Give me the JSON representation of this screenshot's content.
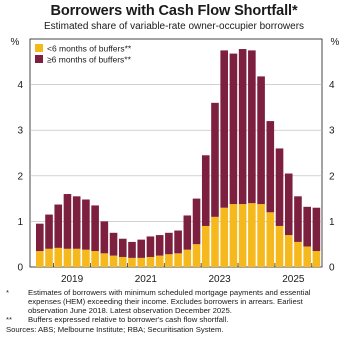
{
  "chart_data": {
    "type": "bar",
    "title": "Borrowers with Cash Flow Shortfall*",
    "subtitle": "Estimated share of variable-rate owner-occupier borrowers",
    "ylabel_left": "%",
    "ylabel_right": "%",
    "ylim": [
      0,
      5
    ],
    "y_ticks": [
      "0",
      "1",
      "2",
      "3",
      "4"
    ],
    "x_tick_labels": [
      {
        "label": "2019",
        "index": 3
      },
      {
        "label": "2021",
        "index": 11
      },
      {
        "label": "2023",
        "index": 19
      },
      {
        "label": "2025",
        "index": 27
      }
    ],
    "categories": [
      "Jun 2018",
      "Sep 2018",
      "Dec 2018",
      "Mar 2019",
      "Jun 2019",
      "Sep 2019",
      "Dec 2019",
      "Mar 2020",
      "Jun 2020",
      "Sep 2020",
      "Dec 2020",
      "Mar 2021",
      "Jun 2021",
      "Sep 2021",
      "Dec 2021",
      "Mar 2022",
      "Jun 2022",
      "Sep 2022",
      "Dec 2022",
      "Mar 2023",
      "Jun 2023",
      "Sep 2023",
      "Dec 2023",
      "Mar 2024",
      "Jun 2024",
      "Sep 2024",
      "Dec 2024",
      "Mar 2025",
      "Jun 2025",
      "Sep 2025",
      "Dec 2025"
    ],
    "series": [
      {
        "name": "<6 months of buffers**",
        "color": "#f5b91e",
        "values": [
          0.35,
          0.4,
          0.42,
          0.4,
          0.4,
          0.38,
          0.35,
          0.3,
          0.25,
          0.22,
          0.2,
          0.2,
          0.22,
          0.25,
          0.28,
          0.3,
          0.38,
          0.5,
          0.9,
          1.1,
          1.3,
          1.38,
          1.38,
          1.4,
          1.38,
          1.2,
          0.9,
          0.7,
          0.55,
          0.45,
          0.35
        ]
      },
      {
        "name": "≥6 months of buffers**",
        "color": "#7d1f3e",
        "values": [
          0.6,
          0.75,
          0.95,
          1.2,
          1.15,
          1.1,
          1.0,
          0.7,
          0.5,
          0.4,
          0.35,
          0.4,
          0.45,
          0.45,
          0.47,
          0.5,
          0.75,
          1.0,
          1.55,
          2.5,
          3.45,
          3.3,
          3.4,
          3.35,
          2.8,
          2.0,
          1.7,
          1.35,
          1.0,
          0.87,
          0.95
        ]
      }
    ],
    "legend_position": "top-left",
    "grid": true
  },
  "footnotes": [
    {
      "mark": "*",
      "text": "Estimates of borrowers with minimum scheduled mortgage payments and essential expenses (HEM) exceeding their income. Excludes borrowers in arrears. Earliest observation June 2018. Latest observation December 2025."
    },
    {
      "mark": "**",
      "text": "Buffers expressed relative to borrower's cash flow shortfall."
    }
  ],
  "sources": "Sources: ABS; Melbourne Institute; RBA; Securitisation System."
}
